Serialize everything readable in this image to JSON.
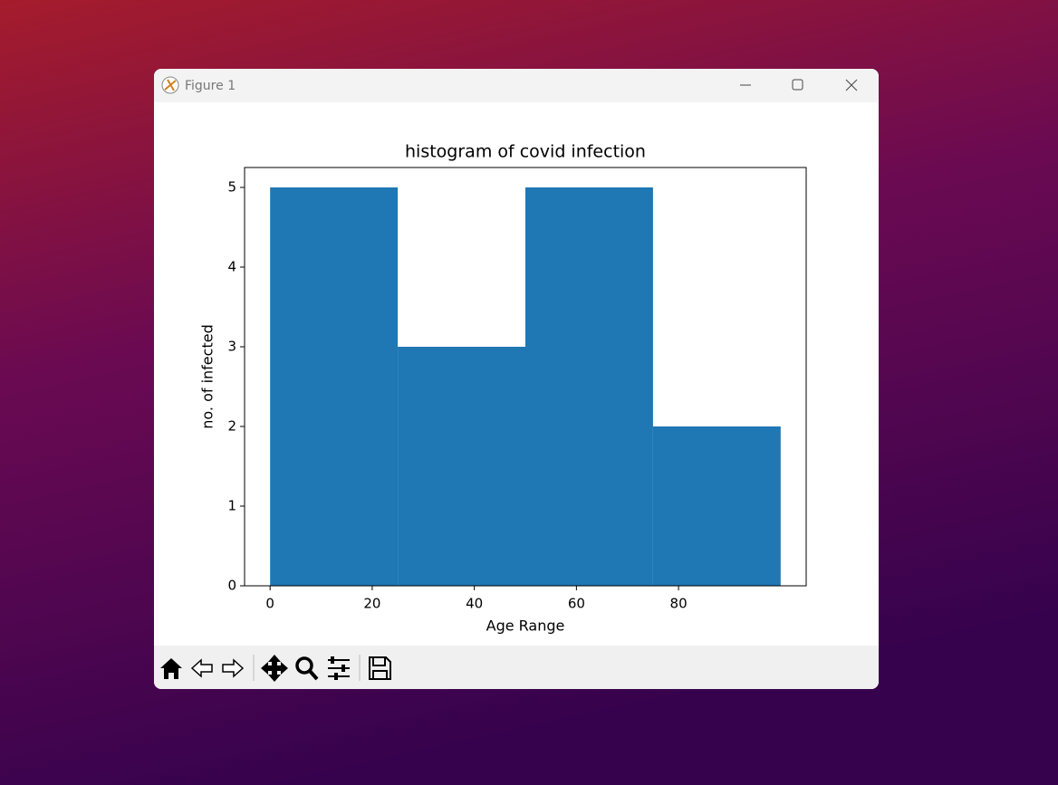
{
  "window": {
    "title": "Figure 1"
  },
  "chart_data": {
    "type": "histogram",
    "title": "histogram of covid infection",
    "x_label": "Age Range",
    "y_label": "no. of infected",
    "bins": [
      0,
      25,
      50,
      75,
      100
    ],
    "values": [
      5,
      3,
      5,
      2
    ],
    "color": "#1f77b4",
    "xlim": [
      -5,
      105
    ],
    "xticks": [
      0,
      20,
      40,
      60,
      80
    ],
    "ylim": [
      0,
      5.25
    ],
    "yticks": [
      0,
      1,
      2,
      3,
      4,
      5
    ],
    "grid": false
  }
}
